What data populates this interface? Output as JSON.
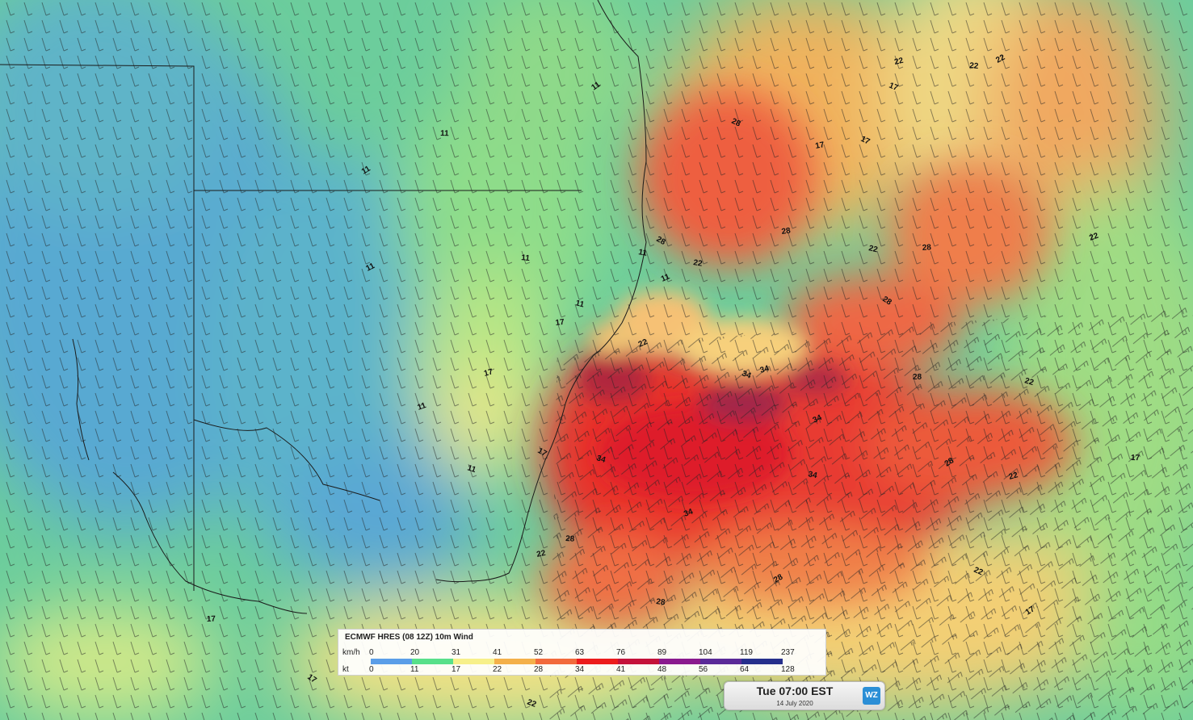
{
  "legend": {
    "title": "ECMWF HRES (08 12Z) 10m Wind",
    "kmh_label": "km/h",
    "kt_label": "kt",
    "kmh_ticks": [
      "0",
      "20",
      "31",
      "41",
      "52",
      "63",
      "76",
      "89",
      "104",
      "119",
      "237"
    ],
    "kt_ticks": [
      "0",
      "11",
      "17",
      "22",
      "28",
      "34",
      "41",
      "48",
      "56",
      "64",
      "128"
    ],
    "colors": [
      "#5b9ee8",
      "#58e08a",
      "#f7f08a",
      "#f4b04a",
      "#f26a3c",
      "#ec1c1c",
      "#c4123a",
      "#8a1a8e",
      "#5a2a98",
      "#262f8c"
    ]
  },
  "time": {
    "main": "Tue 07:00 EST",
    "date": "14 July 2020",
    "logo_text": "WZ",
    "logo_icon": "weatherzone-logo-icon"
  },
  "contour_labels": [
    {
      "id": "c1",
      "text": "11"
    },
    {
      "id": "c2",
      "text": "11"
    },
    {
      "id": "c3",
      "text": "11"
    },
    {
      "id": "c4",
      "text": "11"
    },
    {
      "id": "c5",
      "text": "11"
    },
    {
      "id": "c6",
      "text": "11"
    },
    {
      "id": "c7",
      "text": "11"
    },
    {
      "id": "c8",
      "text": "11"
    },
    {
      "id": "c9",
      "text": "11"
    },
    {
      "id": "c10",
      "text": "11"
    },
    {
      "id": "c11",
      "text": "17"
    },
    {
      "id": "c12",
      "text": "17"
    },
    {
      "id": "c13",
      "text": "17"
    },
    {
      "id": "c14",
      "text": "17"
    },
    {
      "id": "c15",
      "text": "17"
    },
    {
      "id": "c16",
      "text": "17"
    },
    {
      "id": "c17",
      "text": "17"
    },
    {
      "id": "c18",
      "text": "17"
    },
    {
      "id": "c19",
      "text": "17"
    },
    {
      "id": "c20",
      "text": "17"
    },
    {
      "id": "c21",
      "text": "22"
    },
    {
      "id": "c22",
      "text": "22"
    },
    {
      "id": "c23",
      "text": "22"
    },
    {
      "id": "c24",
      "text": "22"
    },
    {
      "id": "c25",
      "text": "22"
    },
    {
      "id": "c26",
      "text": "22"
    },
    {
      "id": "c27",
      "text": "22"
    },
    {
      "id": "c28",
      "text": "22"
    },
    {
      "id": "c29",
      "text": "22"
    },
    {
      "id": "c30",
      "text": "22"
    },
    {
      "id": "c31",
      "text": "28"
    },
    {
      "id": "c32",
      "text": "28"
    },
    {
      "id": "c33",
      "text": "28"
    },
    {
      "id": "c34",
      "text": "28"
    },
    {
      "id": "c35",
      "text": "28"
    },
    {
      "id": "c36",
      "text": "28"
    },
    {
      "id": "c37",
      "text": "28"
    },
    {
      "id": "c38",
      "text": "28"
    },
    {
      "id": "c39",
      "text": "28"
    },
    {
      "id": "c40",
      "text": "28"
    },
    {
      "id": "c41",
      "text": "34"
    },
    {
      "id": "c42",
      "text": "34"
    },
    {
      "id": "c43",
      "text": "34"
    },
    {
      "id": "c44",
      "text": "34"
    },
    {
      "id": "c45",
      "text": "34"
    },
    {
      "id": "c46",
      "text": "34"
    },
    {
      "id": "c47",
      "text": "22"
    },
    {
      "id": "c48",
      "text": "22"
    }
  ]
}
